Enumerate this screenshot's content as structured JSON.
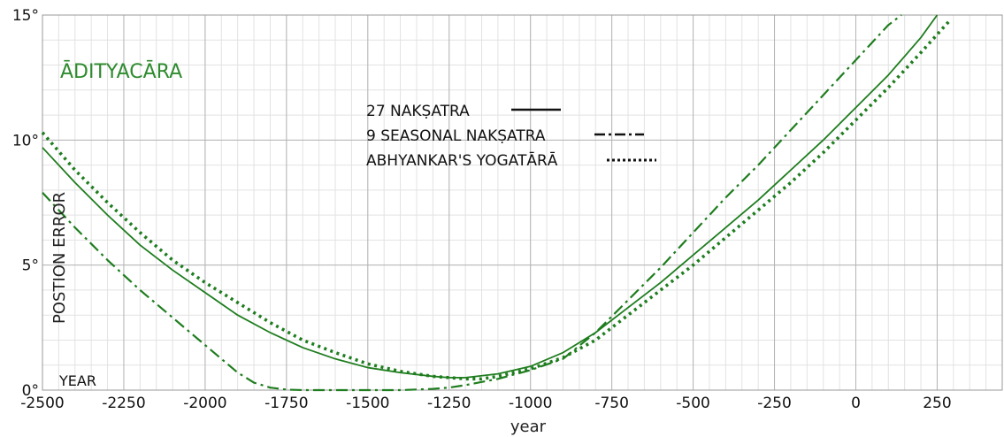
{
  "chart_data": {
    "type": "line",
    "title": "ĀDITYACĀRA",
    "xlabel": "year",
    "ylabel": "POSTION ERROR",
    "corner_label": "YEAR",
    "xlim": [
      -2500,
      450
    ],
    "ylim": [
      0,
      15
    ],
    "xticks": [
      -2500,
      -2250,
      -2000,
      -1750,
      -1500,
      -1250,
      -1000,
      -750,
      -500,
      -250,
      0,
      250
    ],
    "yticks": [
      0,
      5,
      10,
      15
    ],
    "ytick_labels": [
      "0°",
      "5°",
      "10°",
      "15°"
    ],
    "grid": true,
    "minor_grid": true,
    "legend_position": "upper-center",
    "colors": {
      "series": "#1e7d1e",
      "title": "#2e8b2e",
      "grid_major": "#b4b4b4",
      "grid_minor": "#e2e2e2",
      "legend_line": "#111111"
    },
    "series": [
      {
        "name": "27 NAKṢATRA",
        "style": "solid",
        "x": [
          -2500,
          -2400,
          -2300,
          -2200,
          -2100,
          -2000,
          -1900,
          -1800,
          -1700,
          -1600,
          -1500,
          -1400,
          -1300,
          -1250,
          -1200,
          -1100,
          -1000,
          -900,
          -800,
          -700,
          -600,
          -500,
          -400,
          -300,
          -200,
          -100,
          0,
          100,
          200,
          250
        ],
        "y": [
          9.7,
          8.3,
          7.0,
          5.8,
          4.8,
          3.9,
          3.0,
          2.3,
          1.7,
          1.25,
          0.9,
          0.7,
          0.55,
          0.5,
          0.5,
          0.65,
          0.95,
          1.5,
          2.3,
          3.3,
          4.3,
          5.4,
          6.5,
          7.6,
          8.8,
          10.0,
          11.3,
          12.6,
          14.1,
          15.0
        ]
      },
      {
        "name": "9 SEASONAL NAKṢATRA",
        "style": "dash-dot",
        "x": [
          -2500,
          -2400,
          -2300,
          -2200,
          -2100,
          -2000,
          -1900,
          -1850,
          -1800,
          -1750,
          -1700,
          -1600,
          -1500,
          -1400,
          -1300,
          -1250,
          -1200,
          -1100,
          -1000,
          -900,
          -800,
          -700,
          -600,
          -500,
          -400,
          -300,
          -200,
          -100,
          0,
          100,
          140
        ],
        "y": [
          7.9,
          6.5,
          5.2,
          4.0,
          2.9,
          1.8,
          0.7,
          0.3,
          0.1,
          0.02,
          0.0,
          0.0,
          0.0,
          0.0,
          0.05,
          0.1,
          0.2,
          0.45,
          0.8,
          1.25,
          2.3,
          3.6,
          4.9,
          6.3,
          7.7,
          9.0,
          10.4,
          11.8,
          13.2,
          14.6,
          15.0
        ]
      },
      {
        "name": "ABHYANKAR'S YOGATĀRĀ",
        "style": "dotted",
        "x": [
          -2500,
          -2400,
          -2300,
          -2200,
          -2100,
          -2000,
          -1900,
          -1800,
          -1700,
          -1600,
          -1500,
          -1400,
          -1300,
          -1250,
          -1200,
          -1150,
          -1100,
          -1000,
          -900,
          -800,
          -700,
          -600,
          -500,
          -400,
          -300,
          -200,
          -100,
          0,
          100,
          200,
          290
        ],
        "y": [
          10.3,
          8.8,
          7.5,
          6.3,
          5.2,
          4.3,
          3.5,
          2.7,
          2.0,
          1.5,
          1.05,
          0.75,
          0.55,
          0.5,
          0.45,
          0.45,
          0.55,
          0.85,
          1.3,
          2.0,
          3.0,
          4.0,
          5.0,
          6.1,
          7.2,
          8.3,
          9.5,
          10.8,
          12.1,
          13.5,
          14.8
        ]
      }
    ]
  }
}
